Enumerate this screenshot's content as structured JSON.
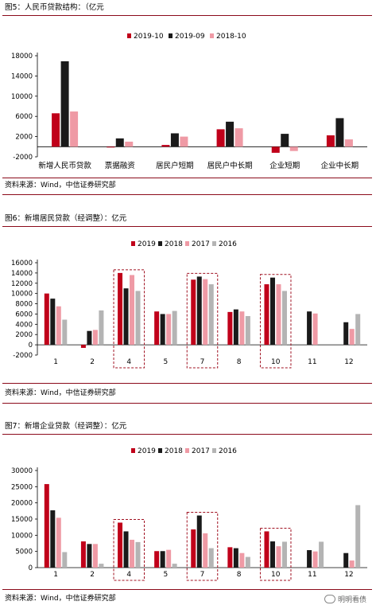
{
  "figures": [
    {
      "title": "图5：人民币贷款结构：（亿元",
      "source": "资料来源：Wind，中信证券研究部"
    },
    {
      "title": "图6：新增居民贷款（经调整）：亿元",
      "source": "资料来源：Wind，中信证券研究部"
    },
    {
      "title": "图7：新增企业贷款（经调整）：亿元",
      "source": "资料来源：Wind，中信证券研究部"
    }
  ],
  "watermark": "明明看债",
  "colors": {
    "rule": "#8b0b1b",
    "red": "#c0001a",
    "black": "#1a1a1a",
    "pink": "#ef9aa5",
    "gray": "#b4b4b4"
  },
  "chart_data": [
    {
      "type": "bar",
      "categories": [
        "新增人民币贷款",
        "票据融资",
        "居民户短期",
        "居民户中长期",
        "企业短期",
        "企业中长期"
      ],
      "series": [
        {
          "name": "2019-10",
          "color": "#c0001a",
          "values": [
            6613,
            -150,
            350,
            3450,
            -1200,
            2250
          ]
        },
        {
          "name": "2019-09",
          "color": "#1a1a1a",
          "values": [
            16900,
            1650,
            2650,
            4950,
            2550,
            5650
          ]
        },
        {
          "name": "2018-10",
          "color": "#ef9aa5",
          "values": [
            6970,
            1000,
            2000,
            3650,
            -850,
            1450
          ]
        }
      ],
      "yticks": [
        -2000,
        2000,
        6000,
        10000,
        14000,
        18000
      ],
      "ylim": [
        -2000,
        18000
      ],
      "legend": "top"
    },
    {
      "type": "bar",
      "categories": [
        "1",
        "2",
        "4",
        "5",
        "7",
        "8",
        "10",
        "11",
        "12"
      ],
      "series": [
        {
          "name": "2019",
          "color": "#c0001a",
          "values": [
            10000,
            -600,
            14000,
            6500,
            12700,
            6400,
            11800,
            null,
            null
          ]
        },
        {
          "name": "2018",
          "color": "#1a1a1a",
          "values": [
            9000,
            2700,
            11000,
            6000,
            13300,
            6900,
            13100,
            6500,
            4400
          ]
        },
        {
          "name": "2017",
          "color": "#ef9aa5",
          "values": [
            7500,
            2900,
            13600,
            6000,
            12800,
            6500,
            11800,
            6100,
            3100
          ]
        },
        {
          "name": "2016",
          "color": "#b4b4b4",
          "values": [
            4900,
            6700,
            10500,
            6600,
            11800,
            5600,
            10500,
            null,
            6000
          ]
        }
      ],
      "highlighted": [
        "4",
        "7",
        "10"
      ],
      "yticks": [
        -2000,
        0,
        2000,
        4000,
        6000,
        8000,
        10000,
        12000,
        14000,
        16000
      ],
      "ylim": [
        -2000,
        16000
      ],
      "legend": "top"
    },
    {
      "type": "bar",
      "categories": [
        "1",
        "2",
        "4",
        "5",
        "7",
        "8",
        "10",
        "11",
        "12"
      ],
      "series": [
        {
          "name": "2019",
          "color": "#c0001a",
          "values": [
            25800,
            8100,
            13900,
            5100,
            11800,
            6300,
            11200,
            null,
            null
          ]
        },
        {
          "name": "2018",
          "color": "#1a1a1a",
          "values": [
            17700,
            7300,
            11200,
            5100,
            16100,
            6000,
            8100,
            5400,
            4500
          ]
        },
        {
          "name": "2017",
          "color": "#ef9aa5",
          "values": [
            15400,
            7300,
            8600,
            5500,
            10600,
            4500,
            6600,
            5000,
            2200
          ]
        },
        {
          "name": "2016",
          "color": "#b4b4b4",
          "values": [
            4800,
            1200,
            7900,
            1200,
            6000,
            3300,
            8000,
            8000,
            19300
          ]
        }
      ],
      "highlighted": [
        "4",
        "7",
        "10"
      ],
      "yticks": [
        0,
        5000,
        10000,
        15000,
        20000,
        25000,
        30000
      ],
      "ylim": [
        0,
        30000
      ],
      "legend": "top"
    }
  ]
}
